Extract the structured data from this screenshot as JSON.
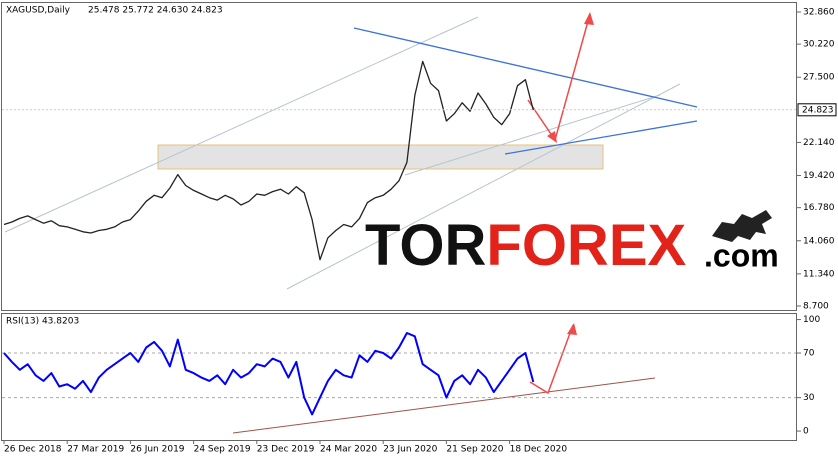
{
  "chart_data": [
    {
      "type": "line",
      "title": "XAGUSD,Daily",
      "subtitle": "25.478 25.772 24.630 24.823",
      "categories": [
        "26 Dec 2018",
        null,
        null,
        null,
        null,
        null,
        null,
        null,
        "27 Mar 2019",
        null,
        null,
        null,
        null,
        null,
        null,
        null,
        "26 Jun 2019",
        null,
        null,
        null,
        null,
        null,
        null,
        null,
        "24 Sep 2019",
        null,
        null,
        null,
        null,
        null,
        null,
        null,
        "23 Dec 2019",
        null,
        null,
        null,
        null,
        null,
        null,
        null,
        "24 Mar 2020",
        null,
        null,
        null,
        null,
        null,
        null,
        null,
        "23 Jun 2020",
        null,
        null,
        null,
        null,
        null,
        null,
        null,
        "21 Sep 2020",
        null,
        null,
        null,
        null,
        null,
        null,
        null,
        "18 Dec 2020",
        null,
        null,
        null
      ],
      "series": [
        {
          "name": "XAGUSD",
          "color": "#222222",
          "values": [
            15.4,
            15.6,
            15.9,
            16.1,
            15.8,
            15.5,
            15.7,
            15.3,
            15.2,
            15.0,
            14.8,
            14.7,
            14.9,
            15.0,
            15.2,
            15.6,
            15.8,
            16.5,
            17.3,
            17.8,
            17.6,
            18.4,
            19.5,
            18.6,
            18.2,
            17.9,
            17.6,
            17.4,
            17.8,
            17.5,
            17.0,
            17.3,
            17.9,
            17.8,
            18.1,
            18.3,
            17.9,
            18.5,
            18.0,
            15.8,
            12.5,
            14.3,
            14.9,
            15.4,
            15.2,
            15.9,
            17.2,
            17.6,
            17.8,
            18.3,
            19.0,
            20.5,
            26.0,
            28.8,
            27.0,
            26.4,
            23.9,
            24.5,
            25.4,
            24.7,
            26.2,
            25.3,
            24.2,
            23.6,
            24.5,
            26.8,
            27.3,
            24.8
          ]
        }
      ],
      "last": 24.823,
      "ylim": [
        8.37,
        33.6
      ],
      "yticks": [
        {
          "value": 32.86,
          "label": "32.860"
        },
        {
          "value": 30.22,
          "label": "30.220"
        },
        {
          "value": 27.5,
          "label": "27.500"
        },
        {
          "value": 22.14,
          "label": "22.140"
        },
        {
          "value": 19.42,
          "label": "19.420"
        },
        {
          "value": 16.78,
          "label": "16.780"
        },
        {
          "value": 14.06,
          "label": "14.060"
        },
        {
          "value": 11.34,
          "label": "11.340"
        },
        {
          "value": 8.7,
          "label": "8.700"
        }
      ],
      "watermark": [
        "TOR",
        "FOREX",
        ".com"
      ]
    },
    {
      "type": "line",
      "title": "RSI(13) 43.8203",
      "series": [
        {
          "name": "RSI(13)",
          "color": "#0000ff",
          "values": [
            70,
            62,
            55,
            60,
            50,
            45,
            52,
            40,
            42,
            38,
            45,
            35,
            48,
            55,
            60,
            65,
            70,
            62,
            75,
            80,
            72,
            58,
            82,
            55,
            52,
            48,
            45,
            50,
            42,
            55,
            48,
            52,
            60,
            58,
            65,
            62,
            48,
            62,
            30,
            15,
            30,
            45,
            55,
            50,
            48,
            68,
            62,
            72,
            70,
            65,
            75,
            88,
            85,
            60,
            55,
            50,
            30,
            45,
            50,
            42,
            55,
            48,
            35,
            45,
            55,
            65,
            70,
            44
          ]
        }
      ],
      "ylim": [
        -8,
        105
      ],
      "yticks": [
        0,
        30,
        70,
        100
      ],
      "levels": [
        70,
        30
      ]
    }
  ]
}
